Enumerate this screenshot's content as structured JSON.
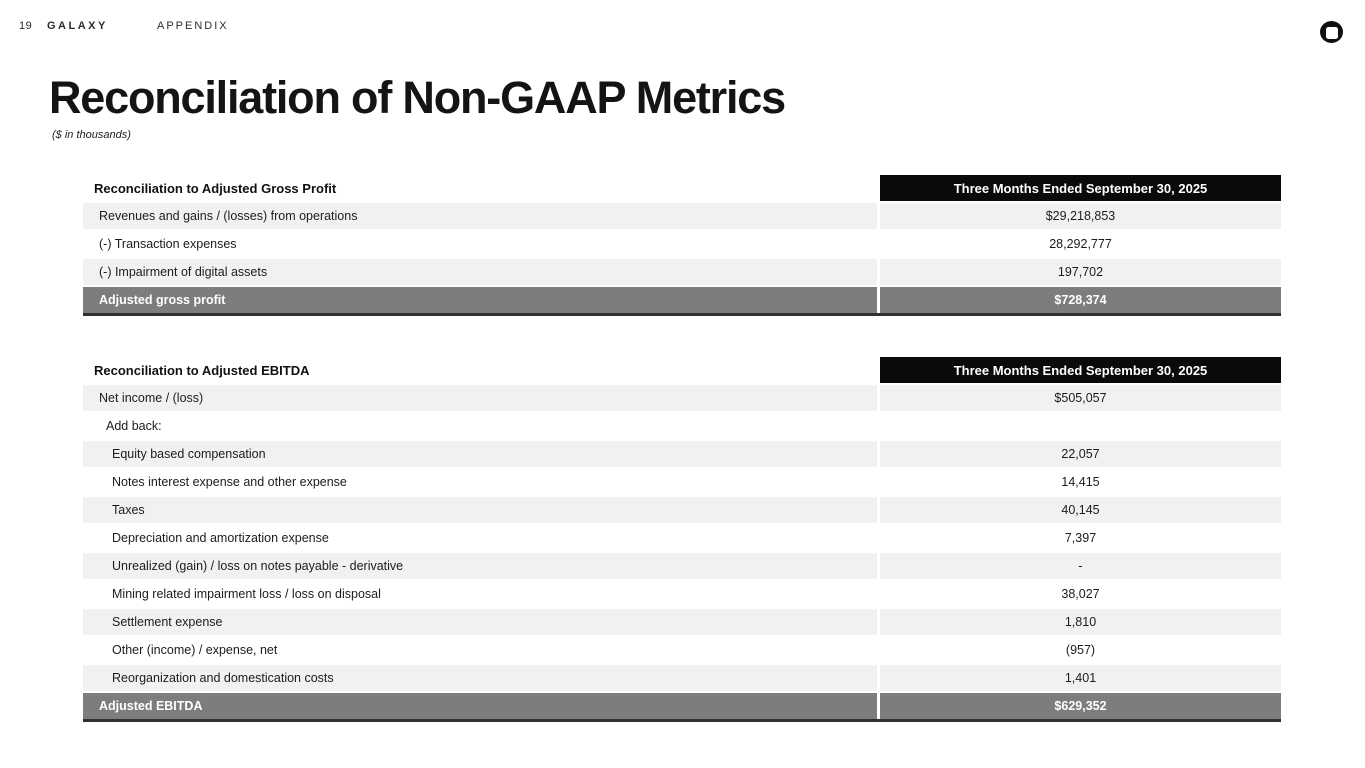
{
  "header": {
    "page_number": "19",
    "brand": "GALAXY",
    "section": "APPENDIX"
  },
  "title": "Reconciliation of Non-GAAP Metrics",
  "subtitle": "($ in thousands)",
  "colors": {
    "row_stripe": "#f1f1f1",
    "total_row_bg": "#7d7d7d",
    "column_header_bg": "#0a0a0a",
    "table_bottom_border": "#303030"
  },
  "icons": {
    "logo": "galaxy-circle-square-logo"
  },
  "tables": [
    {
      "label_header": "Reconciliation to Adjusted Gross Profit",
      "value_header": "Three Months Ended September 30, 2025",
      "rows": [
        {
          "label": "Revenues and gains / (losses) from operations",
          "value": "$29,218,853",
          "indent": 1,
          "type": "normal"
        },
        {
          "label": "(-) Transaction expenses",
          "value": "28,292,777",
          "indent": 1,
          "type": "normal"
        },
        {
          "label": "(-) Impairment of digital assets",
          "value": "197,702",
          "indent": 1,
          "type": "normal"
        },
        {
          "label": "Adjusted gross profit",
          "value": "$728,374",
          "indent": 1,
          "type": "total"
        }
      ]
    },
    {
      "label_header": "Reconciliation to Adjusted EBITDA",
      "value_header": "Three Months Ended September 30, 2025",
      "rows": [
        {
          "label": "Net income / (loss)",
          "value": "$505,057",
          "indent": 1,
          "type": "normal"
        },
        {
          "label": "Add back:",
          "value": "",
          "indent": 2,
          "type": "normal"
        },
        {
          "label": "Equity based compensation",
          "value": "22,057",
          "indent": 3,
          "type": "normal"
        },
        {
          "label": "Notes interest expense and other expense",
          "value": "14,415",
          "indent": 3,
          "type": "normal"
        },
        {
          "label": "Taxes",
          "value": "40,145",
          "indent": 3,
          "type": "normal"
        },
        {
          "label": "Depreciation and amortization expense",
          "value": "7,397",
          "indent": 3,
          "type": "normal"
        },
        {
          "label": "Unrealized (gain) / loss on notes payable - derivative",
          "value": "-",
          "indent": 3,
          "type": "normal"
        },
        {
          "label": "Mining related impairment loss / loss on disposal",
          "value": "38,027",
          "indent": 3,
          "type": "normal"
        },
        {
          "label": "Settlement expense",
          "value": "1,810",
          "indent": 3,
          "type": "normal"
        },
        {
          "label": "Other (income) / expense, net",
          "value": "(957)",
          "indent": 3,
          "type": "normal"
        },
        {
          "label": "Reorganization and domestication costs",
          "value": "1,401",
          "indent": 3,
          "type": "normal"
        },
        {
          "label": "Adjusted EBITDA",
          "value": "$629,352",
          "indent": 1,
          "type": "total"
        }
      ]
    }
  ]
}
